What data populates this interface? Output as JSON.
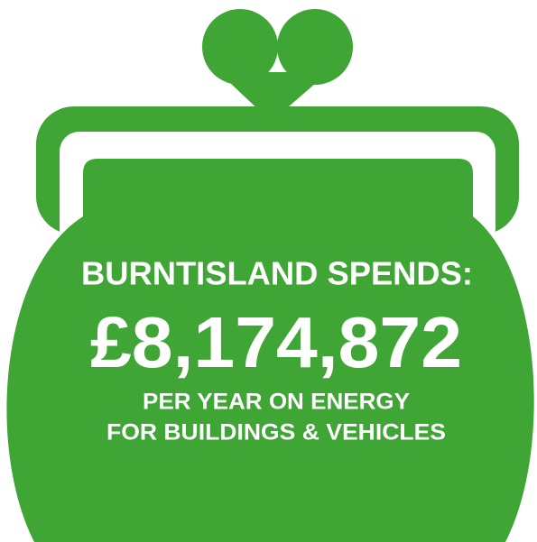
{
  "headline": "BURNTISLAND SPENDS:",
  "amount": "£8,174,872",
  "caption_lines": [
    "PER YEAR ON ENERGY",
    "FOR BUILDINGS & VEHICLES"
  ]
}
